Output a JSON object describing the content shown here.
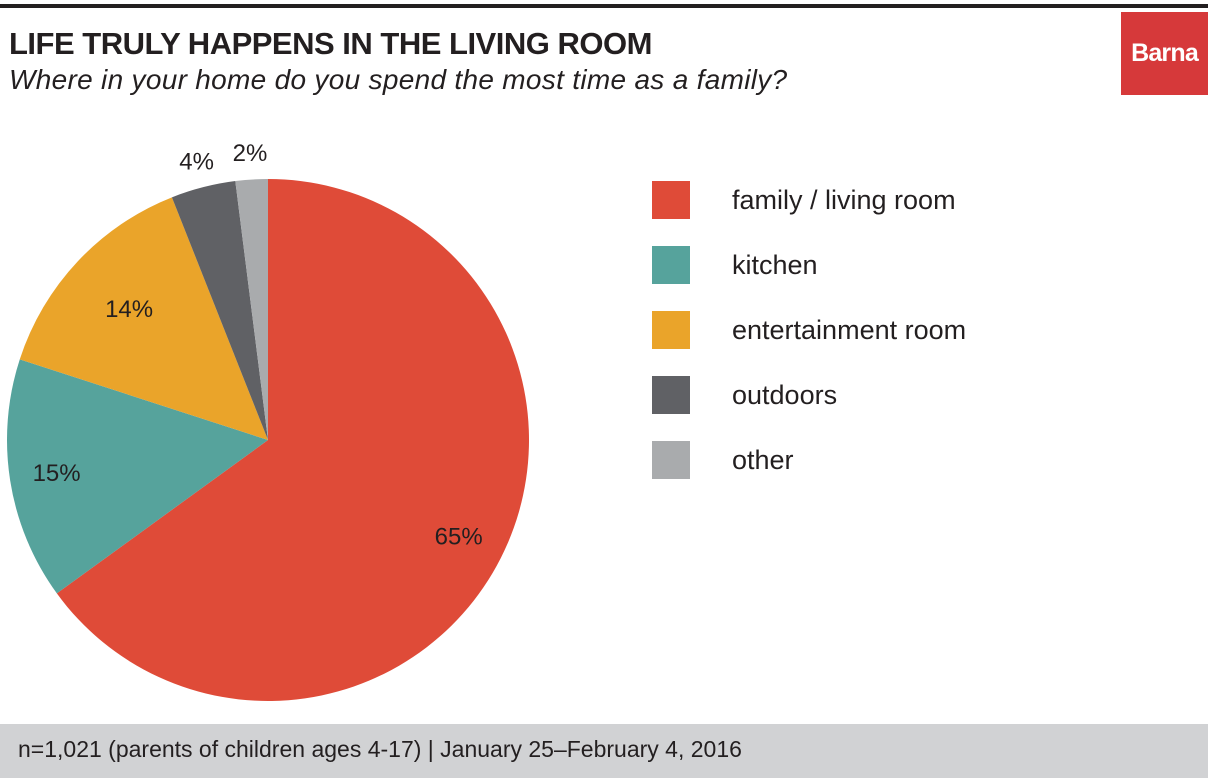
{
  "header": {
    "title": "LIFE TRULY HAPPENS IN THE LIVING ROOM",
    "subtitle": "Where in your home do you spend the most time as a family?"
  },
  "logo": {
    "text": "Barna",
    "color": "#d6393a"
  },
  "footer": {
    "note": "n=1,021 (parents of children ages 4-17) | January 25–February 4, 2016"
  },
  "chart_data": {
    "type": "pie",
    "title": "LIFE TRULY HAPPENS IN THE LIVING ROOM",
    "subtitle": "Where in your home do you spend the most time as a family?",
    "legend_position": "right",
    "slices": [
      {
        "label": "family / living room",
        "value": 65,
        "display": "65%",
        "color": "#df4b38"
      },
      {
        "label": "kitchen",
        "value": 15,
        "display": "15%",
        "color": "#56a39c"
      },
      {
        "label": "entertainment room",
        "value": 14,
        "display": "14%",
        "color": "#eaa42a"
      },
      {
        "label": "outdoors",
        "value": 4,
        "display": "4%",
        "color": "#606165"
      },
      {
        "label": "other",
        "value": 2,
        "display": "2%",
        "color": "#a9abad"
      }
    ]
  }
}
